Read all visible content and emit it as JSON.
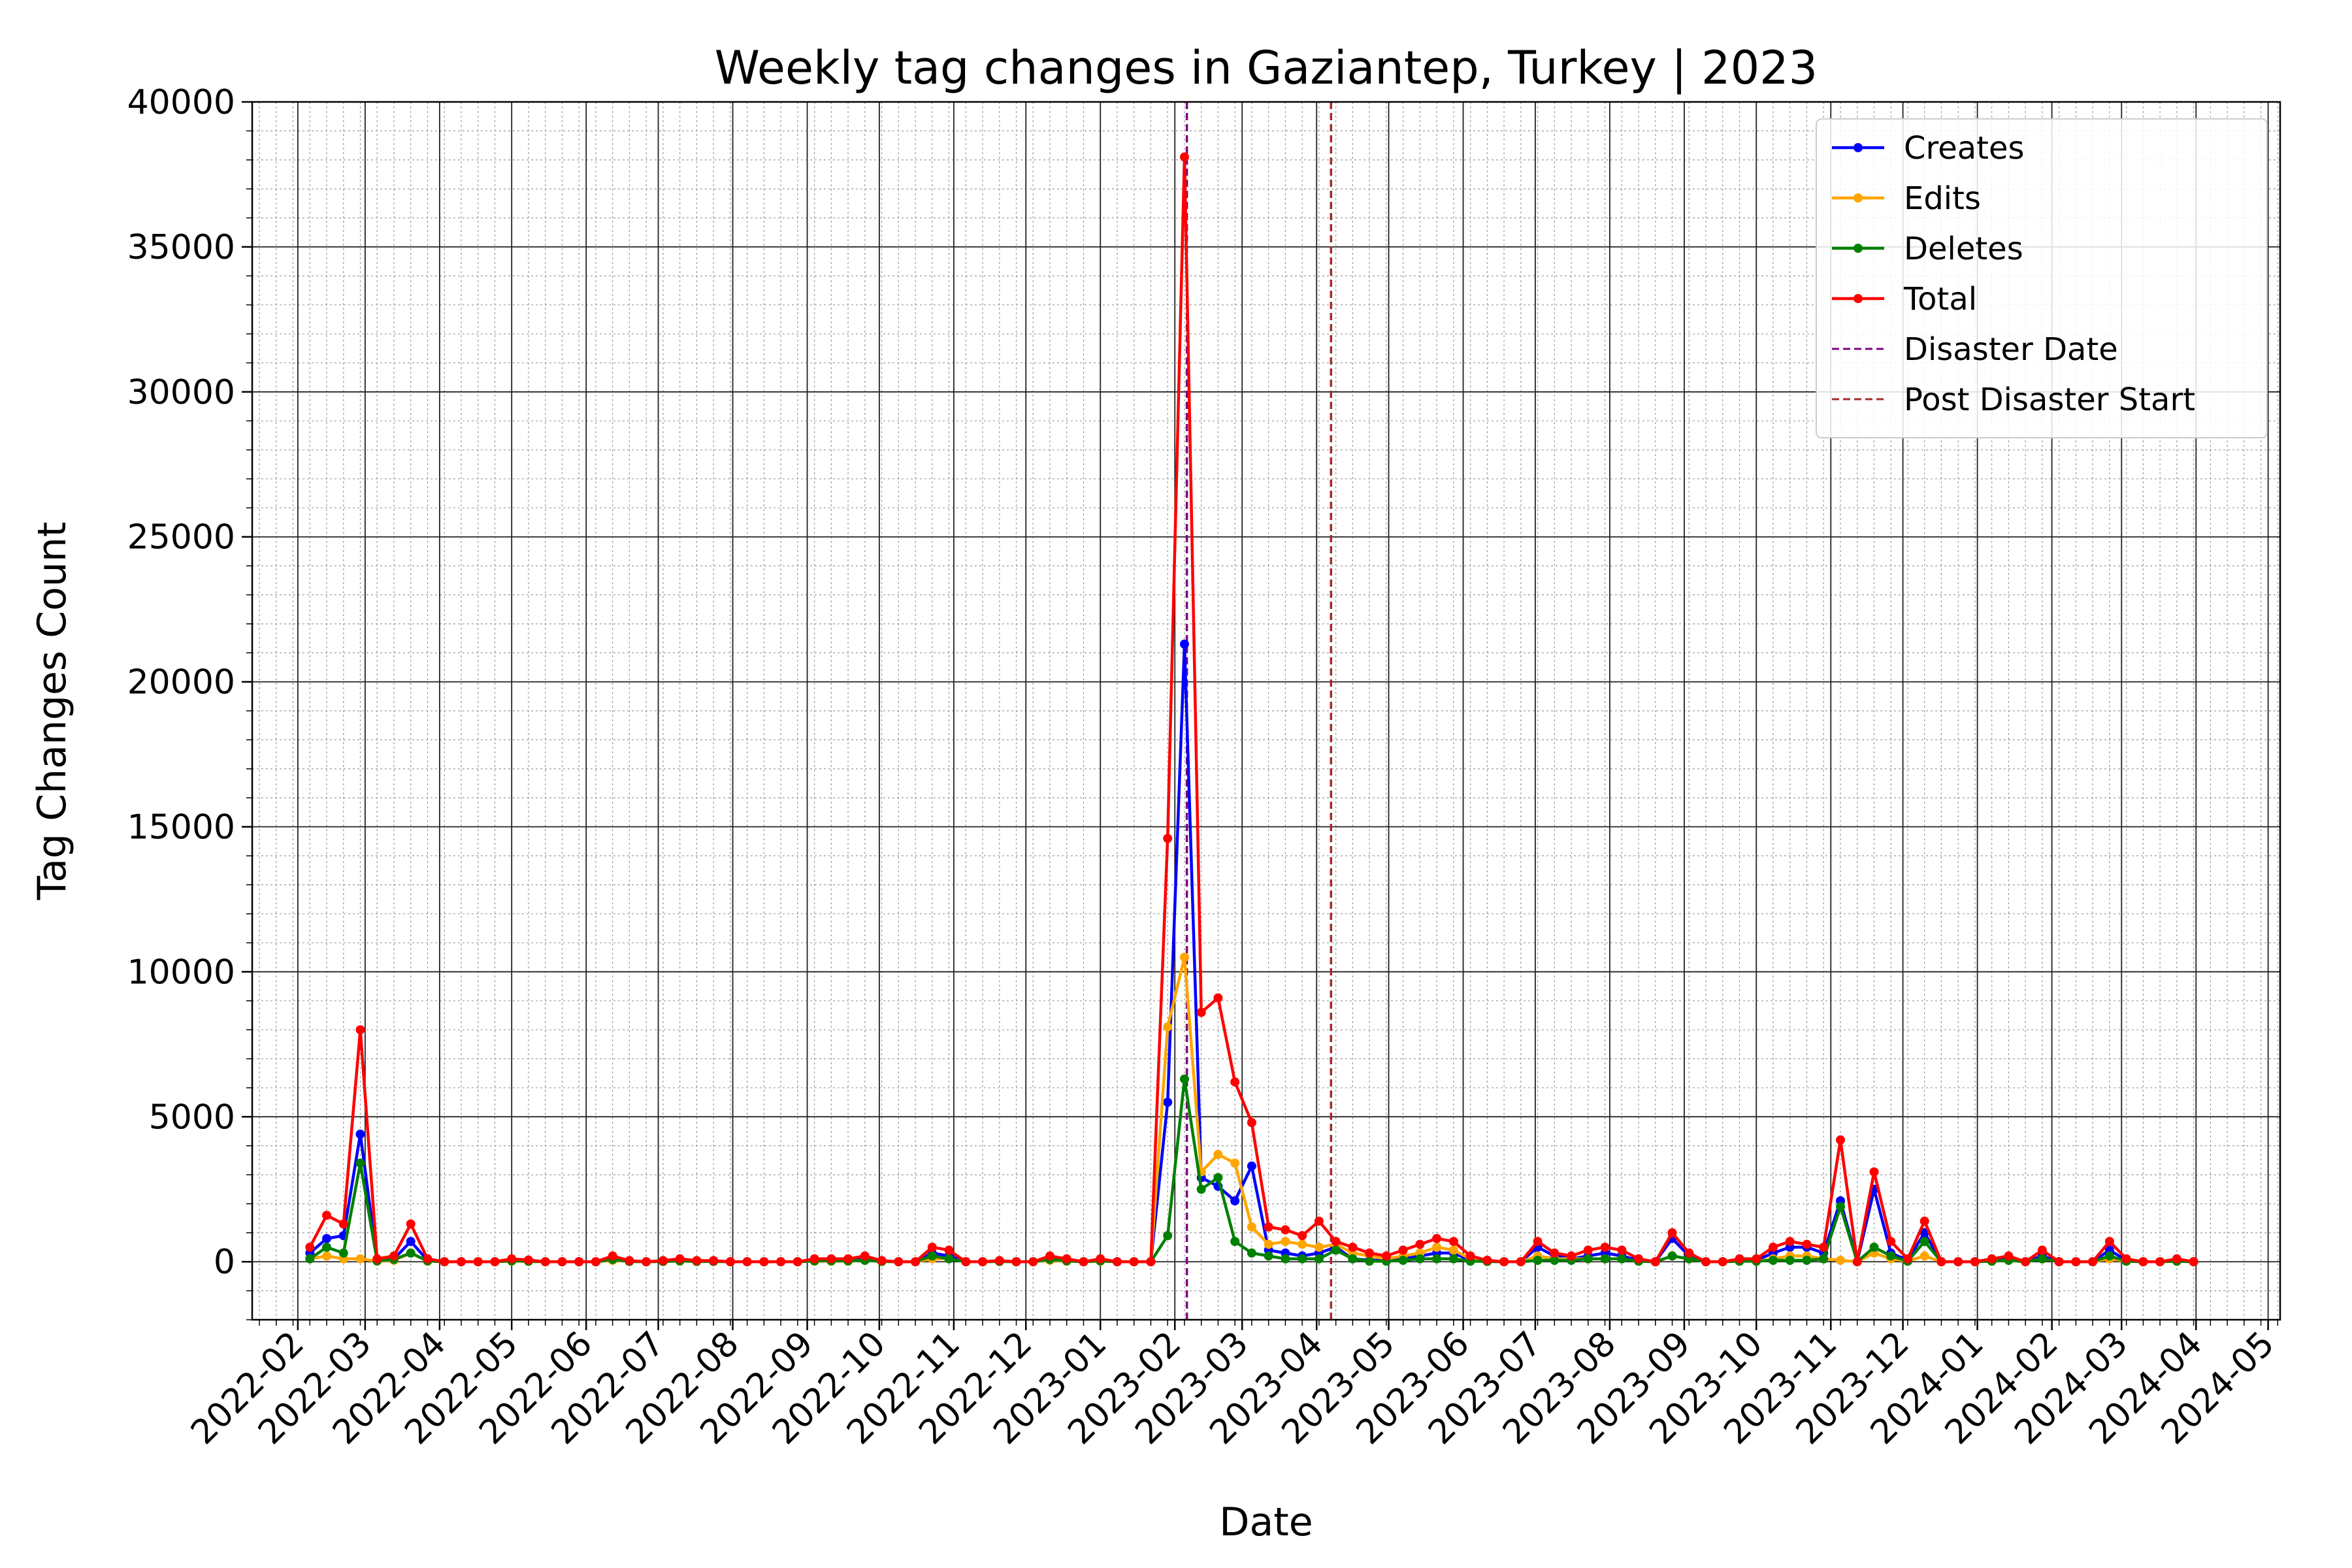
{
  "chart_data": {
    "type": "line",
    "title": "Weekly tag changes in Gaziantep, Turkey | 2023",
    "xlabel": "Date",
    "ylabel": "Tag Changes Count",
    "ylim": [
      -2000,
      40000
    ],
    "yticks": [
      0,
      5000,
      10000,
      15000,
      20000,
      25000,
      30000,
      35000,
      40000
    ],
    "xlim": [
      "2022-01-13",
      "2024-05-06"
    ],
    "xticks": [
      "2022-02",
      "2022-03",
      "2022-04",
      "2022-05",
      "2022-06",
      "2022-07",
      "2022-08",
      "2022-09",
      "2022-10",
      "2022-11",
      "2022-12",
      "2023-01",
      "2023-02",
      "2023-03",
      "2023-04",
      "2023-05",
      "2023-06",
      "2023-07",
      "2023-08",
      "2023-09",
      "2023-10",
      "2023-11",
      "2023-12",
      "2024-01",
      "2024-02",
      "2024-03",
      "2024-04",
      "2024-05"
    ],
    "grid": true,
    "legend_position": "top-right",
    "start_date": "2022-02-06",
    "x": [
      "2022-02-06",
      "2022-02-13",
      "2022-02-20",
      "2022-02-27",
      "2022-03-06",
      "2022-03-13",
      "2022-03-20",
      "2022-03-27",
      "2022-04-03",
      "2022-04-10",
      "2022-04-17",
      "2022-04-24",
      "2022-05-01",
      "2022-05-08",
      "2022-05-15",
      "2022-05-22",
      "2022-05-29",
      "2022-06-05",
      "2022-06-12",
      "2022-06-19",
      "2022-06-26",
      "2022-07-03",
      "2022-07-10",
      "2022-07-17",
      "2022-07-24",
      "2022-07-31",
      "2022-08-07",
      "2022-08-14",
      "2022-08-21",
      "2022-08-28",
      "2022-09-04",
      "2022-09-11",
      "2022-09-18",
      "2022-09-25",
      "2022-10-02",
      "2022-10-09",
      "2022-10-16",
      "2022-10-23",
      "2022-10-30",
      "2022-11-06",
      "2022-11-13",
      "2022-11-20",
      "2022-11-27",
      "2022-12-04",
      "2022-12-11",
      "2022-12-18",
      "2022-12-25",
      "2023-01-01",
      "2023-01-08",
      "2023-01-15",
      "2023-01-22",
      "2023-01-29",
      "2023-02-05",
      "2023-02-12",
      "2023-02-19",
      "2023-02-26",
      "2023-03-05",
      "2023-03-12",
      "2023-03-19",
      "2023-03-26",
      "2023-04-02",
      "2023-04-09",
      "2023-04-16",
      "2023-04-23",
      "2023-04-30",
      "2023-05-07",
      "2023-05-14",
      "2023-05-21",
      "2023-05-28",
      "2023-06-04",
      "2023-06-11",
      "2023-06-18",
      "2023-06-25",
      "2023-07-02",
      "2023-07-09",
      "2023-07-16",
      "2023-07-23",
      "2023-07-30",
      "2023-08-06",
      "2023-08-13",
      "2023-08-20",
      "2023-08-27",
      "2023-09-03",
      "2023-09-10",
      "2023-09-17",
      "2023-09-24",
      "2023-10-01",
      "2023-10-08",
      "2023-10-15",
      "2023-10-22",
      "2023-10-29",
      "2023-11-05",
      "2023-11-12",
      "2023-11-19",
      "2023-11-26",
      "2023-12-03",
      "2023-12-10",
      "2023-12-17",
      "2023-12-24",
      "2023-12-31",
      "2024-01-07",
      "2024-01-14",
      "2024-01-21",
      "2024-01-28",
      "2024-02-04",
      "2024-02-11",
      "2024-02-18",
      "2024-02-25",
      "2024-03-03",
      "2024-03-10",
      "2024-03-17",
      "2024-03-24",
      "2024-03-31"
    ],
    "series": [
      {
        "name": "Creates",
        "color": "#0000ff",
        "values": [
          300,
          800,
          900,
          4400,
          50,
          100,
          700,
          50,
          0,
          0,
          0,
          0,
          50,
          30,
          0,
          0,
          0,
          0,
          100,
          20,
          0,
          20,
          50,
          20,
          20,
          0,
          0,
          0,
          0,
          0,
          50,
          50,
          50,
          100,
          20,
          0,
          0,
          300,
          200,
          0,
          0,
          20,
          0,
          0,
          100,
          50,
          0,
          50,
          0,
          0,
          0,
          5500,
          21300,
          2900,
          2600,
          2100,
          3300,
          400,
          300,
          200,
          300,
          500,
          100,
          50,
          50,
          100,
          200,
          300,
          300,
          50,
          20,
          0,
          0,
          500,
          200,
          100,
          200,
          300,
          200,
          50,
          0,
          800,
          200,
          0,
          0,
          50,
          50,
          300,
          500,
          500,
          300,
          2100,
          0,
          2500,
          300,
          50,
          1000,
          0,
          0,
          0,
          50,
          100,
          0,
          200,
          0,
          0,
          0,
          400,
          50,
          0,
          0,
          50,
          0
        ]
      },
      {
        "name": "Edits",
        "color": "#ffa500",
        "values": [
          100,
          200,
          100,
          100,
          20,
          50,
          300,
          20,
          0,
          0,
          0,
          0,
          20,
          10,
          0,
          0,
          0,
          0,
          50,
          10,
          0,
          10,
          20,
          10,
          10,
          0,
          0,
          0,
          0,
          0,
          20,
          20,
          20,
          50,
          10,
          0,
          0,
          100,
          100,
          0,
          0,
          10,
          0,
          0,
          50,
          20,
          0,
          20,
          0,
          0,
          0,
          8100,
          10500,
          3100,
          3700,
          3400,
          1200,
          600,
          700,
          600,
          500,
          600,
          300,
          200,
          100,
          200,
          300,
          500,
          400,
          100,
          20,
          0,
          0,
          200,
          100,
          100,
          100,
          100,
          100,
          20,
          0,
          200,
          100,
          0,
          0,
          20,
          20,
          100,
          200,
          200,
          100,
          50,
          0,
          300,
          100,
          20,
          200,
          0,
          0,
          0,
          20,
          50,
          0,
          100,
          0,
          0,
          0,
          100,
          20,
          0,
          0,
          20,
          0
        ]
      },
      {
        "name": "Deletes",
        "color": "#008000",
        "values": [
          100,
          500,
          300,
          3400,
          30,
          80,
          300,
          30,
          0,
          0,
          0,
          0,
          30,
          20,
          0,
          0,
          0,
          0,
          80,
          10,
          0,
          10,
          30,
          10,
          10,
          0,
          0,
          0,
          0,
          0,
          30,
          30,
          30,
          50,
          10,
          0,
          0,
          200,
          100,
          0,
          0,
          10,
          0,
          0,
          80,
          30,
          0,
          30,
          0,
          0,
          0,
          900,
          6300,
          2500,
          2900,
          700,
          300,
          200,
          100,
          100,
          100,
          400,
          100,
          20,
          20,
          50,
          100,
          100,
          100,
          20,
          10,
          0,
          0,
          50,
          50,
          50,
          100,
          100,
          100,
          20,
          0,
          200,
          100,
          0,
          0,
          20,
          20,
          50,
          50,
          50,
          100,
          1900,
          0,
          500,
          200,
          20,
          700,
          0,
          0,
          0,
          20,
          50,
          0,
          100,
          0,
          0,
          0,
          200,
          20,
          0,
          0,
          20,
          0
        ]
      },
      {
        "name": "Total",
        "color": "#ff0000",
        "values": [
          500,
          1600,
          1300,
          8000,
          100,
          200,
          1300,
          100,
          0,
          0,
          0,
          0,
          100,
          60,
          0,
          0,
          0,
          0,
          200,
          40,
          0,
          40,
          100,
          40,
          40,
          0,
          0,
          0,
          0,
          0,
          100,
          100,
          100,
          200,
          40,
          0,
          0,
          500,
          400,
          0,
          0,
          40,
          0,
          0,
          200,
          100,
          0,
          100,
          0,
          0,
          0,
          14600,
          38100,
          8600,
          9100,
          6200,
          4800,
          1200,
          1100,
          900,
          1400,
          700,
          500,
          300,
          200,
          400,
          600,
          800,
          700,
          200,
          50,
          0,
          0,
          700,
          300,
          200,
          400,
          500,
          400,
          100,
          0,
          1000,
          300,
          0,
          0,
          100,
          100,
          500,
          700,
          600,
          500,
          4200,
          0,
          3100,
          700,
          100,
          1400,
          0,
          0,
          0,
          100,
          200,
          0,
          400,
          0,
          0,
          0,
          700,
          100,
          0,
          0,
          100,
          0
        ]
      }
    ],
    "vlines": [
      {
        "name": "Disaster Date",
        "date": "2023-02-06",
        "color": "#800080"
      },
      {
        "name": "Post Disaster Start",
        "date": "2023-04-07",
        "color": "#a52a2a"
      }
    ]
  }
}
